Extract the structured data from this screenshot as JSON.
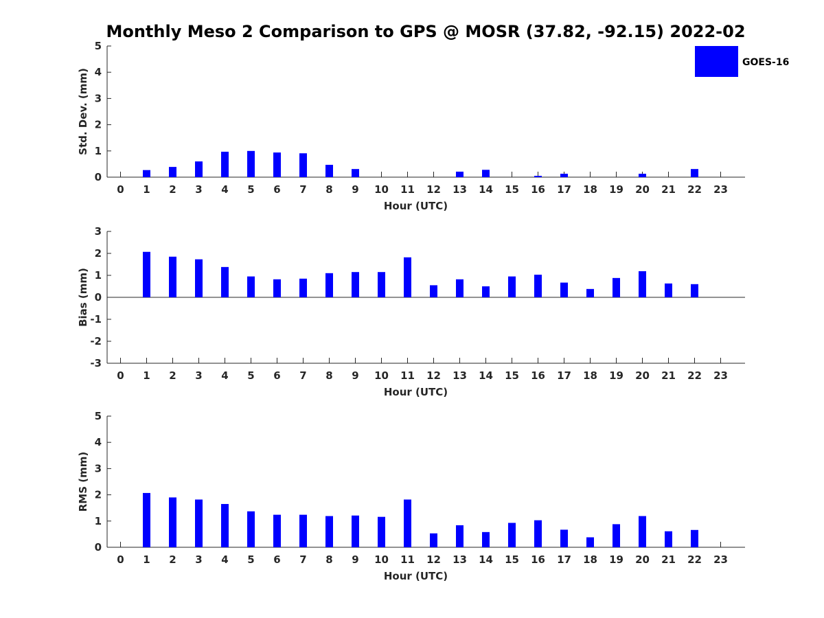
{
  "chart_data": {
    "type": "bar",
    "title": "Monthly Meso 2 Comparison to GPS @ MOSR (37.82, -92.15) 2022-02",
    "legend": {
      "label": "GOES-16",
      "color": "#0000ff",
      "position": "top-right"
    },
    "categories": [
      "0",
      "1",
      "2",
      "3",
      "4",
      "5",
      "6",
      "7",
      "8",
      "9",
      "10",
      "11",
      "12",
      "13",
      "14",
      "15",
      "16",
      "17",
      "18",
      "19",
      "20",
      "21",
      "22",
      "23"
    ],
    "panels": [
      {
        "id": "std",
        "ylabel": "Std. Dev. (mm)",
        "xlabel": "Hour (UTC)",
        "ylim": [
          0,
          5
        ],
        "yticks": [
          "0",
          "1",
          "2",
          "3",
          "4",
          "5"
        ],
        "values": [
          null,
          0.27,
          0.39,
          0.6,
          0.97,
          1.0,
          0.94,
          0.91,
          0.47,
          0.31,
          null,
          null,
          null,
          0.21,
          0.28,
          null,
          0.05,
          0.13,
          null,
          null,
          0.13,
          null,
          0.31,
          null
        ]
      },
      {
        "id": "bias",
        "ylabel": "Bias (mm)",
        "xlabel": "Hour (UTC)",
        "ylim": [
          -3,
          3
        ],
        "yticks": [
          "-3",
          "-2",
          "-1",
          "0",
          "1",
          "2",
          "3"
        ],
        "values": [
          null,
          2.07,
          1.85,
          1.73,
          1.38,
          0.95,
          0.82,
          0.85,
          1.1,
          1.15,
          1.15,
          1.82,
          0.55,
          0.82,
          0.5,
          0.95,
          1.03,
          0.67,
          0.38,
          0.88,
          1.19,
          0.63,
          0.6,
          null
        ]
      },
      {
        "id": "rms",
        "ylabel": "RMS (mm)",
        "xlabel": "Hour (UTC)",
        "ylim": [
          0,
          5
        ],
        "yticks": [
          "0",
          "1",
          "2",
          "3",
          "4",
          "5"
        ],
        "values": [
          null,
          2.07,
          1.9,
          1.82,
          1.65,
          1.37,
          1.24,
          1.24,
          1.19,
          1.21,
          1.16,
          1.82,
          0.53,
          0.84,
          0.58,
          0.93,
          1.03,
          0.67,
          0.38,
          0.88,
          1.19,
          0.61,
          0.66,
          null
        ]
      }
    ]
  }
}
